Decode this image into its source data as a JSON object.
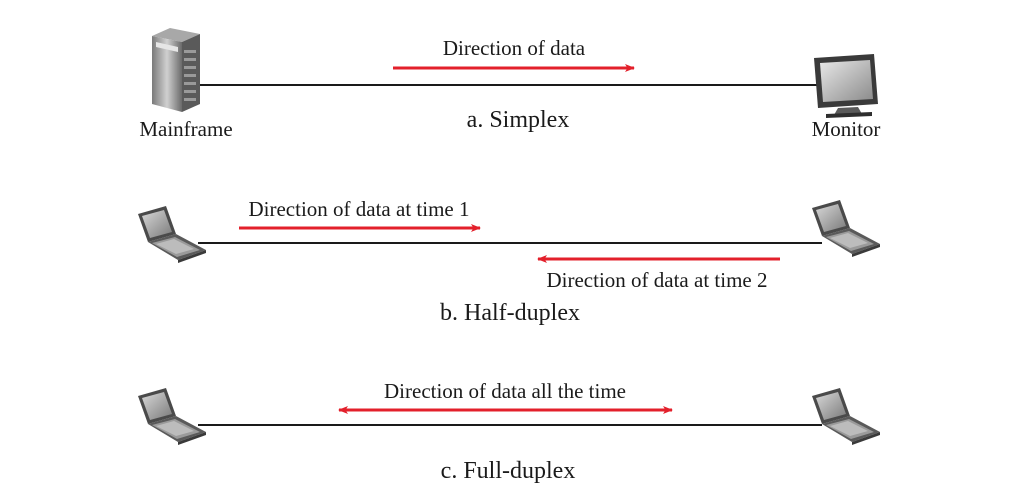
{
  "colors": {
    "line": "#1a1a1a",
    "arrow": "#e3202b",
    "device_dark": "#4a4a4a",
    "device_light": "#c8c8c8",
    "screen": "#9a9a9a"
  },
  "simplex": {
    "caption": "a. Simplex",
    "left_device": {
      "label": "Mainframe",
      "icon": "server-icon"
    },
    "right_device": {
      "label": "Monitor",
      "icon": "monitor-icon"
    },
    "arrow_label": "Direction of data",
    "arrow_direction": "right"
  },
  "half_duplex": {
    "caption": "b. Half-duplex",
    "left_device": {
      "icon": "laptop-icon"
    },
    "right_device": {
      "icon": "laptop-icon"
    },
    "arrow1_label": "Direction of data at time 1",
    "arrow1_direction": "right",
    "arrow2_label": "Direction of data at time 2",
    "arrow2_direction": "left"
  },
  "full_duplex": {
    "caption": "c. Full-duplex",
    "left_device": {
      "icon": "laptop-icon"
    },
    "right_device": {
      "icon": "laptop-icon"
    },
    "arrow_label": "Direction of data all the time",
    "arrow_direction": "both"
  }
}
